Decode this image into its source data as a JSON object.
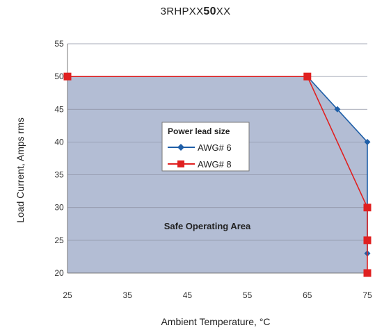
{
  "chart_data": {
    "type": "line",
    "title_prefix": "3RHPXX",
    "title_bold": "50",
    "title_suffix": "XX",
    "xlabel": "Ambient Temperature, °C",
    "ylabel": "Load Current, Amps  rms",
    "xlim": [
      25,
      75
    ],
    "ylim": [
      20,
      55
    ],
    "xticks": [
      25,
      35,
      45,
      55,
      65,
      75
    ],
    "yticks": [
      20,
      25,
      30,
      35,
      40,
      45,
      50,
      55
    ],
    "grid": "horizontal",
    "legend_title": "Power lead size",
    "legend_placement": "center",
    "region_label": "Safe Operating Area",
    "series": [
      {
        "name": "AWG# 6",
        "marker": "diamond",
        "color": "#1f5fa8",
        "x": [
          25,
          65,
          70,
          75,
          75
        ],
        "y": [
          50,
          50,
          45,
          40,
          23
        ]
      },
      {
        "name": "AWG# 8",
        "marker": "square",
        "color": "#e02020",
        "x": [
          25,
          65,
          75,
          75,
          75
        ],
        "y": [
          50,
          50,
          30,
          25,
          20
        ]
      }
    ],
    "fill_color": "#b3bdd4"
  }
}
